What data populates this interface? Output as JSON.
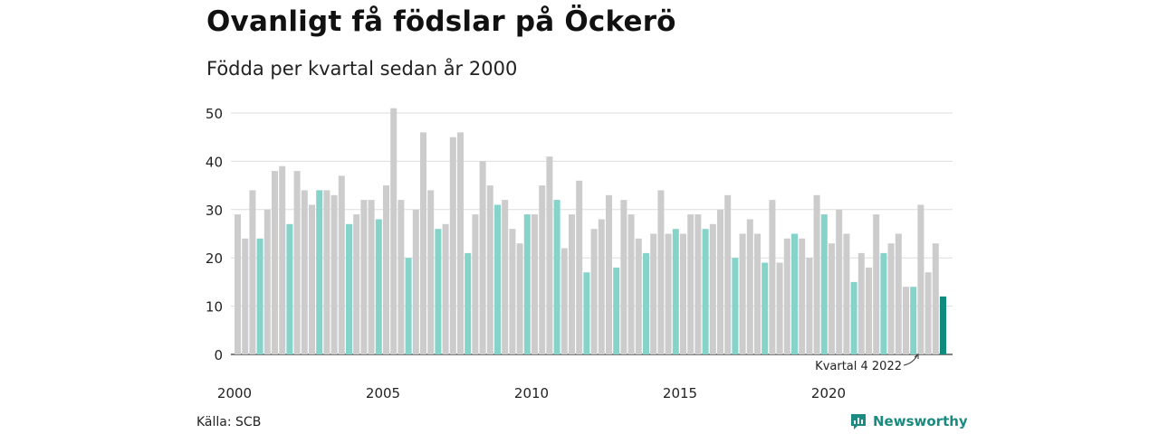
{
  "title": "Ovanligt få födslar på Öckerö",
  "subtitle": "Födda per kvartal sedan år 2000",
  "source": "Källa: SCB",
  "brand": "Newsworthy",
  "colors": {
    "regular": "#cccccc",
    "quarter4": "#86d3c9",
    "latest": "#138a7e",
    "grid": "#dddddd",
    "axis": "#333333"
  },
  "chart_data": {
    "type": "bar",
    "x_ticks": [
      "2000",
      "2005",
      "2010",
      "2015",
      "2020"
    ],
    "y_ticks": [
      "0",
      "10",
      "20",
      "30",
      "40",
      "50"
    ],
    "ylim": [
      0,
      50
    ],
    "values": [
      29,
      24,
      34,
      24,
      30,
      38,
      39,
      27,
      38,
      34,
      31,
      34,
      34,
      33,
      37,
      27,
      29,
      32,
      32,
      28,
      35,
      51,
      32,
      20,
      30,
      46,
      34,
      26,
      27,
      45,
      46,
      21,
      29,
      40,
      35,
      31,
      32,
      26,
      23,
      29,
      29,
      35,
      41,
      32,
      22,
      29,
      36,
      17,
      26,
      28,
      33,
      18,
      32,
      29,
      24,
      21,
      25,
      34,
      25,
      26,
      25,
      29,
      29,
      26,
      27,
      30,
      33,
      20,
      25,
      28,
      25,
      19,
      32,
      19,
      24,
      25,
      24,
      20,
      33,
      29,
      23,
      30,
      25,
      15,
      21,
      18,
      29,
      21,
      23,
      25,
      14,
      14,
      31,
      17,
      23,
      12
    ],
    "annotation": "Kvartal 4 2022",
    "grid": true
  }
}
